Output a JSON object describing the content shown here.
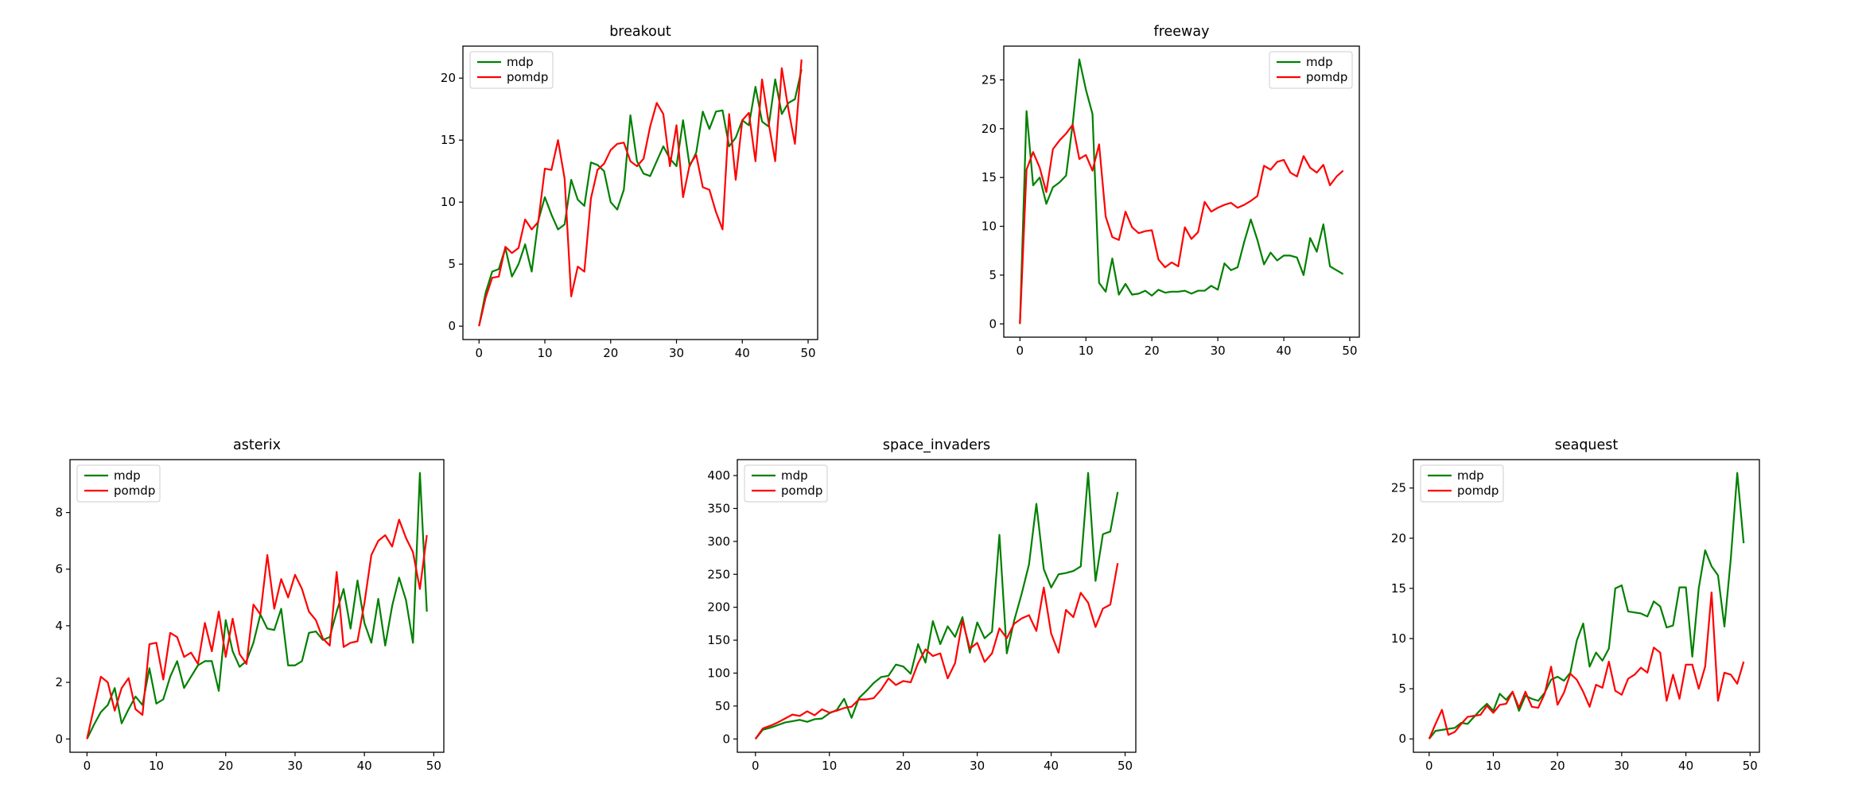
{
  "figure": {
    "background": "#ffffff"
  },
  "colors": {
    "mdp": "#008000",
    "pomdp": "#ff0000",
    "frame": "#000000",
    "legend_border": "#cccccc"
  },
  "legend_labels": [
    "mdp",
    "pomdp"
  ],
  "chart_data": [
    {
      "id": "breakout",
      "type": "line",
      "title": "breakout",
      "legend_position": "upper left",
      "x_ticks": [
        0,
        10,
        20,
        30,
        40,
        50
      ],
      "y_ticks": [
        0,
        5,
        10,
        15,
        20
      ],
      "xlim": [
        -2.45,
        51.45
      ],
      "ylim": [
        -1.08,
        22.58
      ],
      "x_start": 0,
      "x_step": 1,
      "series": [
        {
          "name": "mdp",
          "color": "#008000",
          "values": [
            0,
            2.7,
            4.4,
            4.6,
            6.3,
            4.0,
            5.0,
            6.6,
            4.4,
            8.5,
            10.4,
            9.0,
            7.8,
            8.2,
            11.8,
            10.2,
            9.7,
            13.2,
            13.0,
            12.5,
            10.0,
            9.4,
            11.0,
            17.0,
            13.3,
            12.3,
            12.1,
            13.3,
            14.5,
            13.5,
            12.9,
            16.6,
            12.9,
            14.0,
            17.3,
            15.9,
            17.3,
            17.4,
            14.5,
            15.2,
            16.6,
            16.2,
            19.3,
            16.5,
            16.1,
            19.9,
            17.1,
            18.0,
            18.3,
            20.7
          ]
        },
        {
          "name": "pomdp",
          "color": "#ff0000",
          "values": [
            0,
            2.3,
            3.9,
            4.0,
            6.4,
            5.9,
            6.3,
            8.6,
            7.8,
            8.4,
            12.7,
            12.6,
            15.0,
            11.9,
            2.4,
            4.8,
            4.4,
            10.3,
            12.6,
            13.1,
            14.2,
            14.7,
            14.8,
            13.3,
            12.9,
            13.5,
            16.1,
            18.0,
            17.1,
            12.9,
            16.2,
            10.4,
            13.0,
            13.8,
            11.2,
            11.0,
            9.2,
            7.8,
            17.1,
            11.8,
            16.6,
            17.2,
            13.3,
            19.9,
            16.4,
            13.3,
            20.8,
            17.5,
            14.7,
            21.5
          ]
        }
      ]
    },
    {
      "id": "freeway",
      "type": "line",
      "title": "freeway",
      "legend_position": "upper right",
      "x_ticks": [
        0,
        10,
        20,
        30,
        40,
        50
      ],
      "y_ticks": [
        0,
        5,
        10,
        15,
        20,
        25
      ],
      "xlim": [
        -2.45,
        51.45
      ],
      "ylim": [
        -1.36,
        28.46
      ],
      "x_start": 0,
      "x_step": 1,
      "series": [
        {
          "name": "mdp",
          "color": "#008000",
          "values": [
            0,
            21.8,
            14.2,
            15.0,
            12.3,
            14.0,
            14.5,
            15.2,
            20.5,
            27.1,
            24.0,
            21.5,
            4.2,
            3.3,
            6.7,
            3.0,
            4.1,
            3.0,
            3.1,
            3.4,
            2.9,
            3.5,
            3.2,
            3.3,
            3.3,
            3.4,
            3.1,
            3.4,
            3.4,
            3.9,
            3.5,
            6.2,
            5.5,
            5.8,
            8.4,
            10.7,
            8.6,
            6.1,
            7.3,
            6.5,
            7.0,
            7.0,
            6.8,
            5.0,
            8.8,
            7.4,
            10.2,
            5.9,
            5.5,
            5.1
          ]
        },
        {
          "name": "pomdp",
          "color": "#ff0000",
          "values": [
            0,
            15.8,
            17.6,
            16.0,
            13.5,
            17.9,
            18.8,
            19.5,
            20.4,
            16.9,
            17.3,
            15.7,
            18.4,
            11.0,
            8.9,
            8.6,
            11.5,
            9.9,
            9.3,
            9.5,
            9.6,
            6.6,
            5.8,
            6.3,
            5.9,
            9.9,
            8.7,
            9.4,
            12.5,
            11.5,
            11.9,
            12.2,
            12.4,
            11.9,
            12.2,
            12.6,
            13.1,
            16.2,
            15.8,
            16.6,
            16.8,
            15.5,
            15.1,
            17.2,
            16.0,
            15.5,
            16.3,
            14.2,
            15.1,
            15.7
          ]
        }
      ]
    },
    {
      "id": "asterix",
      "type": "line",
      "title": "asterix",
      "legend_position": "upper left",
      "x_ticks": [
        0,
        10,
        20,
        30,
        40,
        50
      ],
      "y_ticks": [
        0,
        2,
        4,
        6,
        8
      ],
      "xlim": [
        -2.45,
        51.45
      ],
      "ylim": [
        -0.47,
        9.87
      ],
      "x_start": 0,
      "x_step": 1,
      "series": [
        {
          "name": "mdp",
          "color": "#008000",
          "values": [
            0,
            0.5,
            0.95,
            1.2,
            1.8,
            0.55,
            1.05,
            1.5,
            1.2,
            2.5,
            1.25,
            1.4,
            2.2,
            2.75,
            1.8,
            2.2,
            2.6,
            2.75,
            2.75,
            1.7,
            4.2,
            3.1,
            2.55,
            2.75,
            3.4,
            4.4,
            3.9,
            3.85,
            4.6,
            2.6,
            2.6,
            2.75,
            3.75,
            3.8,
            3.5,
            3.6,
            4.5,
            5.3,
            3.9,
            5.6,
            4.1,
            3.4,
            4.95,
            3.3,
            4.7,
            5.7,
            4.9,
            3.4,
            9.4,
            4.5
          ]
        },
        {
          "name": "pomdp",
          "color": "#ff0000",
          "values": [
            0,
            1.1,
            2.2,
            2.0,
            1.0,
            1.8,
            2.15,
            1.05,
            0.85,
            3.35,
            3.4,
            2.1,
            3.75,
            3.6,
            2.9,
            3.05,
            2.65,
            4.1,
            3.1,
            4.5,
            2.9,
            4.25,
            3.0,
            2.65,
            4.75,
            4.4,
            6.5,
            4.6,
            5.65,
            5.0,
            5.8,
            5.3,
            4.5,
            4.2,
            3.55,
            3.3,
            5.9,
            3.25,
            3.4,
            3.45,
            4.8,
            6.5,
            7.0,
            7.2,
            6.8,
            7.75,
            7.1,
            6.6,
            5.3,
            7.2
          ]
        }
      ]
    },
    {
      "id": "space_invaders",
      "type": "line",
      "title": "space_invaders",
      "legend_position": "upper left",
      "x_ticks": [
        0,
        10,
        20,
        30,
        40,
        50
      ],
      "y_ticks": [
        0,
        50,
        100,
        150,
        200,
        250,
        300,
        350,
        400
      ],
      "xlim": [
        -2.45,
        51.45
      ],
      "ylim": [
        -20.2,
        424.2
      ],
      "x_start": 0,
      "x_step": 1,
      "series": [
        {
          "name": "mdp",
          "color": "#008000",
          "values": [
            0,
            14,
            17,
            21,
            25,
            27,
            29,
            26,
            30,
            31,
            39,
            44,
            61,
            32,
            62,
            73,
            85,
            94,
            96,
            113,
            110,
            99,
            144,
            116,
            179,
            144,
            171,
            155,
            185,
            131,
            177,
            153,
            163,
            310,
            130,
            180,
            220,
            265,
            357,
            258,
            230,
            250,
            252,
            255,
            262,
            404,
            240,
            311,
            315,
            375
          ]
        },
        {
          "name": "pomdp",
          "color": "#ff0000",
          "values": [
            0,
            16,
            20,
            25,
            31,
            37,
            35,
            42,
            36,
            45,
            40,
            43,
            47,
            49,
            60,
            60,
            62,
            75,
            92,
            82,
            88,
            86,
            115,
            136,
            126,
            130,
            92,
            115,
            180,
            137,
            146,
            117,
            130,
            168,
            153,
            175,
            183,
            188,
            164,
            230,
            160,
            131,
            196,
            185,
            222,
            207,
            170,
            198,
            204,
            267
          ]
        }
      ]
    },
    {
      "id": "seaquest",
      "type": "line",
      "title": "seaquest",
      "legend_position": "upper left",
      "x_ticks": [
        0,
        10,
        20,
        30,
        40,
        50
      ],
      "y_ticks": [
        0,
        5,
        10,
        15,
        20,
        25
      ],
      "xlim": [
        -2.45,
        51.45
      ],
      "ylim": [
        -1.33,
        27.83
      ],
      "x_start": 0,
      "x_step": 1,
      "series": [
        {
          "name": "mdp",
          "color": "#008000",
          "values": [
            0,
            0.8,
            0.9,
            1.0,
            1.1,
            1.6,
            1.5,
            2.2,
            2.9,
            3.5,
            2.8,
            4.5,
            3.9,
            4.7,
            2.8,
            4.3,
            4.0,
            3.8,
            4.6,
            5.9,
            6.2,
            5.8,
            6.6,
            9.8,
            11.5,
            7.2,
            8.6,
            7.8,
            9.0,
            15.0,
            15.3,
            12.7,
            12.6,
            12.5,
            12.2,
            13.7,
            13.2,
            11.1,
            11.3,
            15.1,
            15.1,
            8.2,
            15.0,
            18.8,
            17.2,
            16.3,
            11.2,
            18.0,
            26.5,
            19.5
          ]
        },
        {
          "name": "pomdp",
          "color": "#ff0000",
          "values": [
            0,
            1.5,
            2.9,
            0.4,
            0.7,
            1.5,
            2.2,
            2.3,
            2.4,
            3.3,
            2.6,
            3.4,
            3.5,
            4.7,
            3.1,
            4.7,
            3.2,
            3.1,
            4.5,
            7.2,
            3.4,
            4.6,
            6.5,
            5.9,
            4.7,
            3.2,
            5.4,
            5.1,
            7.7,
            4.8,
            4.4,
            6.0,
            6.4,
            7.1,
            6.6,
            9.1,
            8.6,
            3.8,
            6.4,
            4.0,
            7.4,
            7.4,
            5.0,
            7.2,
            14.6,
            3.8,
            6.6,
            6.4,
            5.5,
            7.7
          ]
        }
      ]
    }
  ]
}
